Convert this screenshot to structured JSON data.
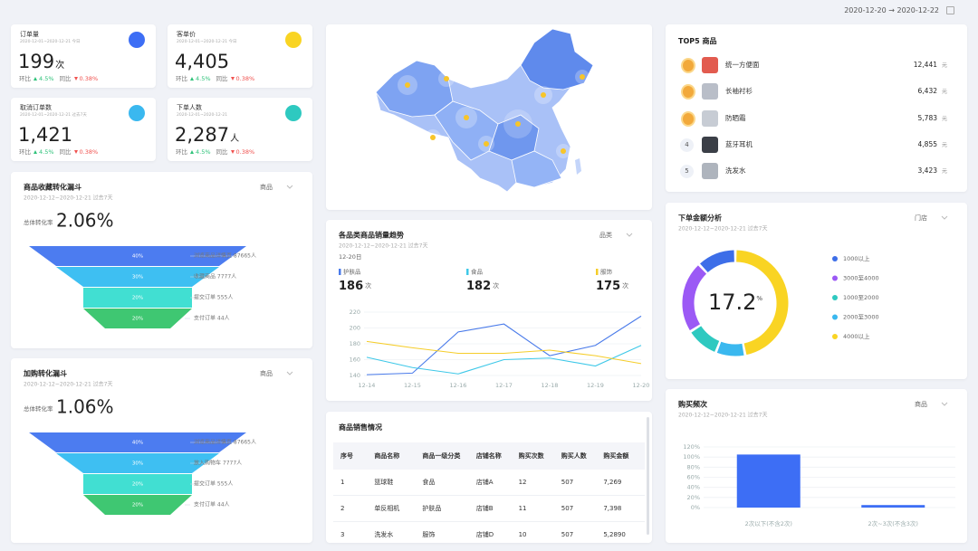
{
  "header": {
    "date_range": "2020-12-20 → 2020-12-22"
  },
  "kpis": [
    {
      "title": "订单量",
      "period": "2020-12-01~2020-12-21 今日",
      "value": "199",
      "unit": "次",
      "mom_label": "环比",
      "mom": "4.5%",
      "yoy_label": "同比",
      "yoy": "0.38%"
    },
    {
      "title": "客单价",
      "period": "2020-12-01~2020-12-21 今日",
      "value": "4,405",
      "mom_label": "环比",
      "mom": "4.5%",
      "yoy_label": "同比",
      "yoy": "0.38%"
    },
    {
      "title": "取消订单数",
      "period": "2020-12-01~2020-12-21 过去7天",
      "value": "1,421",
      "mom_label": "环比",
      "mom": "4.5%",
      "yoy_label": "同比",
      "yoy": "0.38%"
    },
    {
      "title": "下单人数",
      "period": "2020-12-01~2020-12-21",
      "value": "2,287",
      "unit": "人",
      "mom_label": "环比",
      "mom": "4.5%",
      "yoy_label": "同比",
      "yoy": "0.38%"
    }
  ],
  "top5": {
    "title": "TOP5 商品",
    "items": [
      {
        "name": "统一方便面",
        "amount": "12,441",
        "unit": "元"
      },
      {
        "name": "长袖衬衫",
        "amount": "6,432",
        "unit": "元"
      },
      {
        "name": "防晒霜",
        "amount": "5,783",
        "unit": "元"
      },
      {
        "rank": "4",
        "name": "蓝牙耳机",
        "amount": "4,855",
        "unit": "元"
      },
      {
        "rank": "5",
        "name": "洗发水",
        "amount": "3,423",
        "unit": "元"
      }
    ]
  },
  "table": {
    "title": "商品销售情况",
    "headers": [
      "序号",
      "商品名称",
      "商品一级分类",
      "店铺名称",
      "购买次数",
      "购买人数",
      "购买金额"
    ],
    "rows": [
      [
        "1",
        "篮球鞋",
        "食品",
        "店铺A",
        "12",
        "507",
        "7,269"
      ],
      [
        "2",
        "单反相机",
        "护肤品",
        "店铺B",
        "11",
        "507",
        "7,398"
      ],
      [
        "3",
        "洗发水",
        "服饰",
        "店铺D",
        "10",
        "507",
        "5,2890"
      ]
    ]
  },
  "chart_data": [
    {
      "type": "funnel",
      "title": "商品收藏转化漏斗",
      "subtitle": "2020-12-12~2020-12-21 过去7天",
      "filter": "商品",
      "overall_label": "总体转化率",
      "overall_value": "2.06%",
      "categories": [
        "浏览商品详情页 87665人",
        "收藏商品 7777人",
        "提交订单 555人",
        "支付订单 44人"
      ],
      "values": [
        40,
        30,
        20,
        20
      ],
      "value_labels": [
        "40%",
        "30%",
        "20%",
        "20%"
      ],
      "colors": [
        "#4c7cf0",
        "#3ebff2",
        "#41dfd2",
        "#3fc772"
      ]
    },
    {
      "type": "funnel",
      "title": "加购转化漏斗",
      "subtitle": "2020-12-12~2020-12-21 过去7天",
      "filter": "商品",
      "overall_label": "总体转化率",
      "overall_value": "1.06%",
      "categories": [
        "浏览商品详情页 87665人",
        "放入购物车 7777人",
        "提交订单 555人",
        "支付订单 44人"
      ],
      "values": [
        40,
        30,
        20,
        20
      ],
      "value_labels": [
        "40%",
        "30%",
        "20%",
        "20%"
      ],
      "colors": [
        "#4c7cf0",
        "#3ebff2",
        "#41dfd2",
        "#3fc772"
      ]
    },
    {
      "type": "line",
      "title": "各品类商品销量趋势",
      "subtitle": "2020-12-12~2020-12-21 过去7天",
      "filter": "品类",
      "date": "12-20日",
      "categories": [
        "12-14",
        "12-15",
        "12-16",
        "12-17",
        "12-18",
        "12-19",
        "12-20"
      ],
      "ylim": [
        140,
        220
      ],
      "yticks": [
        140,
        160,
        180,
        200,
        220
      ],
      "grid": true,
      "series": [
        {
          "name": "护肤品",
          "color": "#4a7bea",
          "total": 186,
          "unit": "次",
          "values": [
            141,
            143,
            195,
            205,
            165,
            178,
            215
          ]
        },
        {
          "name": "食品",
          "color": "#3ec8e8",
          "total": 182,
          "unit": "次",
          "values": [
            163,
            150,
            142,
            160,
            162,
            152,
            178
          ]
        },
        {
          "name": "服饰",
          "color": "#f5cd2a",
          "total": 175,
          "unit": "次",
          "values": [
            183,
            175,
            168,
            168,
            172,
            165,
            155
          ]
        }
      ]
    },
    {
      "type": "donut",
      "title": "下单金额分析",
      "subtitle": "2020-12-12~2020-12-21 过去7天",
      "filter": "门店",
      "center_value": 17.2,
      "center_unit": "%",
      "categories": [
        "1000以上",
        "3000至4000",
        "1000至2000",
        "2000至3000",
        "4000以上"
      ],
      "values": [
        12,
        22,
        10,
        9,
        47
      ],
      "colors": [
        "#3d6ee8",
        "#9b59f5",
        "#2ec9c0",
        "#3ab8ef",
        "#f9d423"
      ]
    },
    {
      "type": "bar",
      "title": "购买频次",
      "subtitle": "2020-12-12~2020-12-21 过去7天",
      "filter": "商品",
      "categories": [
        "2次以下(不含2次)",
        "2次~3次(不含3次)"
      ],
      "values": [
        105,
        5
      ],
      "color": "#3d6ef5",
      "ylim": [
        0,
        120
      ],
      "yticks": [
        {
          "value": 0,
          "label": "0%"
        },
        {
          "value": 20,
          "label": "20%"
        },
        {
          "value": 40,
          "label": "40%"
        },
        {
          "value": 60,
          "label": "60%"
        },
        {
          "value": 80,
          "label": "80%"
        },
        {
          "value": 100,
          "label": "100%"
        },
        {
          "value": 120,
          "label": "120%"
        }
      ],
      "grid": true
    }
  ]
}
